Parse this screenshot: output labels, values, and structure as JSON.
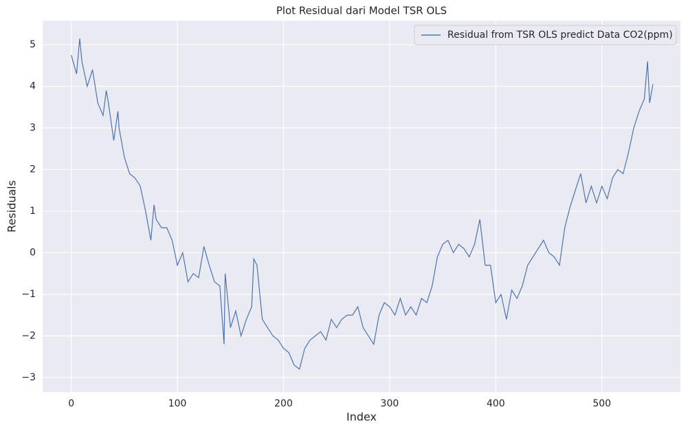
{
  "chart_data": {
    "type": "line",
    "title": "Plot Residual dari Model TSR OLS",
    "x_label": "Index",
    "y_label": "Residuals",
    "x": [
      0,
      5,
      8,
      10,
      15,
      20,
      25,
      30,
      33,
      35,
      40,
      44,
      45,
      50,
      55,
      60,
      65,
      70,
      75,
      78,
      80,
      85,
      90,
      95,
      100,
      105,
      110,
      115,
      120,
      125,
      130,
      135,
      140,
      144,
      145,
      150,
      155,
      160,
      165,
      170,
      172,
      175,
      180,
      185,
      190,
      195,
      200,
      205,
      210,
      215,
      220,
      225,
      230,
      235,
      240,
      245,
      250,
      255,
      260,
      265,
      270,
      275,
      280,
      285,
      290,
      295,
      300,
      305,
      310,
      315,
      320,
      325,
      330,
      335,
      340,
      345,
      350,
      355,
      360,
      365,
      370,
      375,
      380,
      385,
      390,
      395,
      400,
      405,
      410,
      415,
      420,
      425,
      430,
      435,
      440,
      445,
      450,
      455,
      460,
      465,
      470,
      475,
      480,
      485,
      490,
      495,
      500,
      505,
      510,
      515,
      520,
      525,
      530,
      535,
      540,
      543,
      545,
      548
    ],
    "series": [
      {
        "name": "Residual from TSR OLS predict Data CO2(ppm)",
        "color": "#4c72b0",
        "values": [
          4.75,
          4.3,
          5.15,
          4.6,
          4.0,
          4.4,
          3.6,
          3.3,
          3.9,
          3.6,
          2.7,
          3.4,
          3.0,
          2.3,
          1.9,
          1.8,
          1.6,
          1.0,
          0.3,
          1.15,
          0.8,
          0.6,
          0.6,
          0.3,
          -0.3,
          0.0,
          -0.7,
          -0.5,
          -0.6,
          0.15,
          -0.3,
          -0.7,
          -0.8,
          -2.2,
          -0.5,
          -1.8,
          -1.4,
          -2.0,
          -1.6,
          -1.3,
          -0.15,
          -0.3,
          -1.6,
          -1.8,
          -2.0,
          -2.1,
          -2.3,
          -2.4,
          -2.7,
          -2.8,
          -2.3,
          -2.1,
          -2.0,
          -1.9,
          -2.1,
          -1.6,
          -1.8,
          -1.6,
          -1.5,
          -1.5,
          -1.3,
          -1.8,
          -2.0,
          -2.2,
          -1.5,
          -1.2,
          -1.3,
          -1.5,
          -1.1,
          -1.5,
          -1.3,
          -1.5,
          -1.1,
          -1.2,
          -0.8,
          -0.1,
          0.2,
          0.3,
          0.0,
          0.2,
          0.1,
          -0.1,
          0.2,
          0.8,
          -0.3,
          -0.3,
          -1.2,
          -1.0,
          -1.6,
          -0.9,
          -1.1,
          -0.8,
          -0.3,
          -0.1,
          0.1,
          0.3,
          0.0,
          -0.1,
          -0.3,
          0.6,
          1.1,
          1.5,
          1.9,
          1.2,
          1.6,
          1.2,
          1.6,
          1.3,
          1.8,
          2.0,
          1.9,
          2.4,
          3.0,
          3.4,
          3.7,
          4.6,
          3.6,
          4.05
        ]
      }
    ],
    "xlim": [
      -27,
      574
    ],
    "ylim": [
      -3.35,
      5.58
    ],
    "xticks": [
      0,
      100,
      200,
      300,
      400,
      500
    ],
    "yticks": [
      {
        "value": -3,
        "label": "−3"
      },
      {
        "value": -2,
        "label": "−2"
      },
      {
        "value": -1,
        "label": "−1"
      },
      0,
      1,
      2,
      3,
      4,
      5
    ],
    "grid": true,
    "legend": "upper right"
  }
}
